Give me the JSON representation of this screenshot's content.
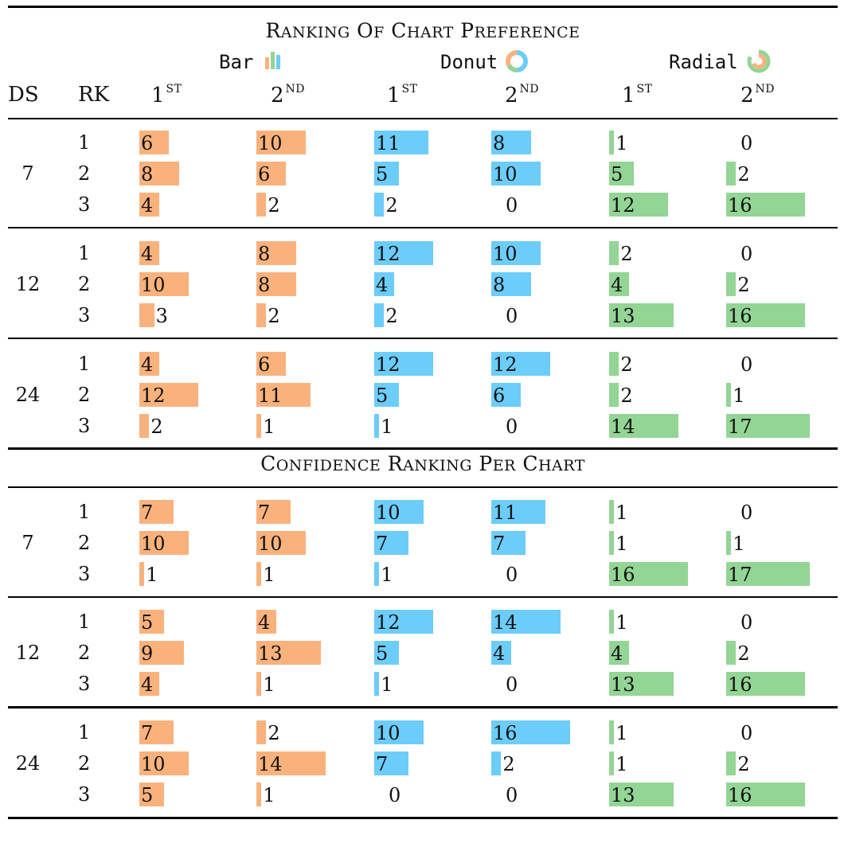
{
  "colors": {
    "bar": "#FAB27D",
    "donut": "#6CCDFA",
    "radial": "#93D595"
  },
  "titles": {
    "top": "Ranking of Chart Preference",
    "bottom": "Confidence Ranking per Chart"
  },
  "headers": {
    "ds": "DS",
    "rk": "RK",
    "bar": "Bar",
    "donut": "Donut",
    "radial": "Radial",
    "first_base": "1",
    "first_sup": "ST",
    "second_base": "2",
    "second_sup": "ND"
  },
  "chart_data": [
    {
      "type": "table",
      "title": "Ranking of Chart Preference",
      "columns": [
        "DS",
        "RK",
        "Bar 1st",
        "Bar 2nd",
        "Donut 1st",
        "Donut 2nd",
        "Radial 1st",
        "Radial 2nd"
      ],
      "groups": [
        {
          "ds": "7",
          "rows": [
            {
              "rk": "1",
              "values": [
                6,
                10,
                11,
                8,
                1,
                0
              ]
            },
            {
              "rk": "2",
              "values": [
                8,
                6,
                5,
                10,
                5,
                2
              ]
            },
            {
              "rk": "3",
              "values": [
                4,
                2,
                2,
                0,
                12,
                16
              ]
            }
          ]
        },
        {
          "ds": "12",
          "rows": [
            {
              "rk": "1",
              "values": [
                4,
                8,
                12,
                10,
                2,
                0
              ]
            },
            {
              "rk": "2",
              "values": [
                10,
                8,
                4,
                8,
                4,
                2
              ]
            },
            {
              "rk": "3",
              "values": [
                3,
                2,
                2,
                0,
                13,
                16
              ]
            }
          ]
        },
        {
          "ds": "24",
          "rows": [
            {
              "rk": "1",
              "values": [
                4,
                6,
                12,
                12,
                2,
                0
              ]
            },
            {
              "rk": "2",
              "values": [
                12,
                11,
                5,
                6,
                2,
                1
              ]
            },
            {
              "rk": "3",
              "values": [
                2,
                1,
                1,
                0,
                14,
                17
              ]
            }
          ]
        }
      ]
    },
    {
      "type": "table",
      "title": "Confidence Ranking per Chart",
      "columns": [
        "DS",
        "RK",
        "Bar 1st",
        "Bar 2nd",
        "Donut 1st",
        "Donut 2nd",
        "Radial 1st",
        "Radial 2nd"
      ],
      "groups": [
        {
          "ds": "7",
          "rows": [
            {
              "rk": "1",
              "values": [
                7,
                7,
                10,
                11,
                1,
                0
              ]
            },
            {
              "rk": "2",
              "values": [
                10,
                10,
                7,
                7,
                1,
                1
              ]
            },
            {
              "rk": "3",
              "values": [
                1,
                1,
                1,
                0,
                16,
                17
              ]
            }
          ]
        },
        {
          "ds": "12",
          "rows": [
            {
              "rk": "1",
              "values": [
                5,
                4,
                12,
                14,
                1,
                0
              ]
            },
            {
              "rk": "2",
              "values": [
                9,
                13,
                5,
                4,
                4,
                2
              ]
            },
            {
              "rk": "3",
              "values": [
                4,
                1,
                1,
                0,
                13,
                16
              ]
            }
          ]
        },
        {
          "ds": "24",
          "rows": [
            {
              "rk": "1",
              "values": [
                7,
                2,
                10,
                16,
                1,
                0
              ]
            },
            {
              "rk": "2",
              "values": [
                10,
                14,
                7,
                2,
                1,
                2
              ]
            },
            {
              "rk": "3",
              "values": [
                5,
                1,
                0,
                0,
                13,
                16
              ]
            }
          ]
        }
      ]
    }
  ]
}
